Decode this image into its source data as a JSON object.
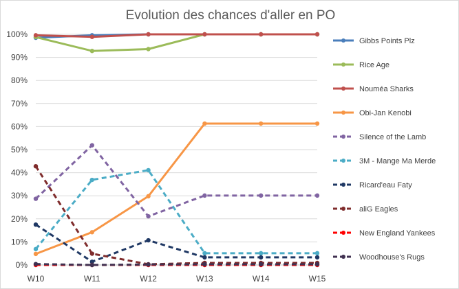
{
  "chart_data": {
    "type": "line",
    "title": "Evolution des chances d'aller en PO",
    "xlabel": "",
    "ylabel": "",
    "ylim": [
      0,
      100
    ],
    "y_unit": "%",
    "grid": "horizontal",
    "legend_placement": "right",
    "categories": [
      "W10",
      "W11",
      "W12",
      "W13",
      "W14",
      "W15"
    ],
    "y_ticks": [
      "0%",
      "10%",
      "20%",
      "30%",
      "40%",
      "50%",
      "60%",
      "70%",
      "80%",
      "90%",
      "100%"
    ],
    "series": [
      {
        "name": "Gibbs Points Plz",
        "color": "#4a7ebb",
        "dashed": false,
        "values": [
          98.5,
          99.6,
          100,
          100,
          100,
          100
        ]
      },
      {
        "name": "Rice Age",
        "color": "#9bbb59",
        "dashed": false,
        "values": [
          98.8,
          92.8,
          93.6,
          100,
          100,
          100
        ]
      },
      {
        "name": "Nouméa Sharks",
        "color": "#c0504d",
        "dashed": false,
        "values": [
          99.6,
          98.9,
          100,
          100,
          100,
          100
        ]
      },
      {
        "name": "Obi-Jan Kenobi",
        "color": "#f79646",
        "dashed": false,
        "values": [
          4.8,
          14.2,
          29.8,
          61.3,
          61.3,
          61.3
        ]
      },
      {
        "name": "Silence of the Lamb",
        "color": "#8064a2",
        "dashed": true,
        "values": [
          28.7,
          51.9,
          21.1,
          30.1,
          30.1,
          30.1
        ]
      },
      {
        "name": "3M - Mange Ma Merde",
        "color": "#4bacc6",
        "dashed": true,
        "values": [
          6.9,
          36.9,
          41.1,
          5.1,
          5.1,
          5.1
        ]
      },
      {
        "name": "Ricard'eau Faty",
        "color": "#1f3864",
        "dashed": true,
        "values": [
          17.5,
          1.4,
          10.7,
          3.3,
          3.3,
          3.3
        ]
      },
      {
        "name": "aliG Eagles",
        "color": "#7f2c2c",
        "dashed": true,
        "values": [
          42.8,
          4.9,
          0.3,
          0.9,
          0.9,
          0.9
        ]
      },
      {
        "name": "New England Yankees",
        "color": "#ff0000",
        "dashed": true,
        "values": [
          0,
          0,
          0,
          0,
          0,
          0
        ]
      },
      {
        "name": "Woodhouse's Rugs",
        "color": "#403151",
        "dashed": true,
        "values": [
          0.4,
          0,
          0.2,
          0.3,
          0.3,
          0.3
        ]
      }
    ]
  }
}
